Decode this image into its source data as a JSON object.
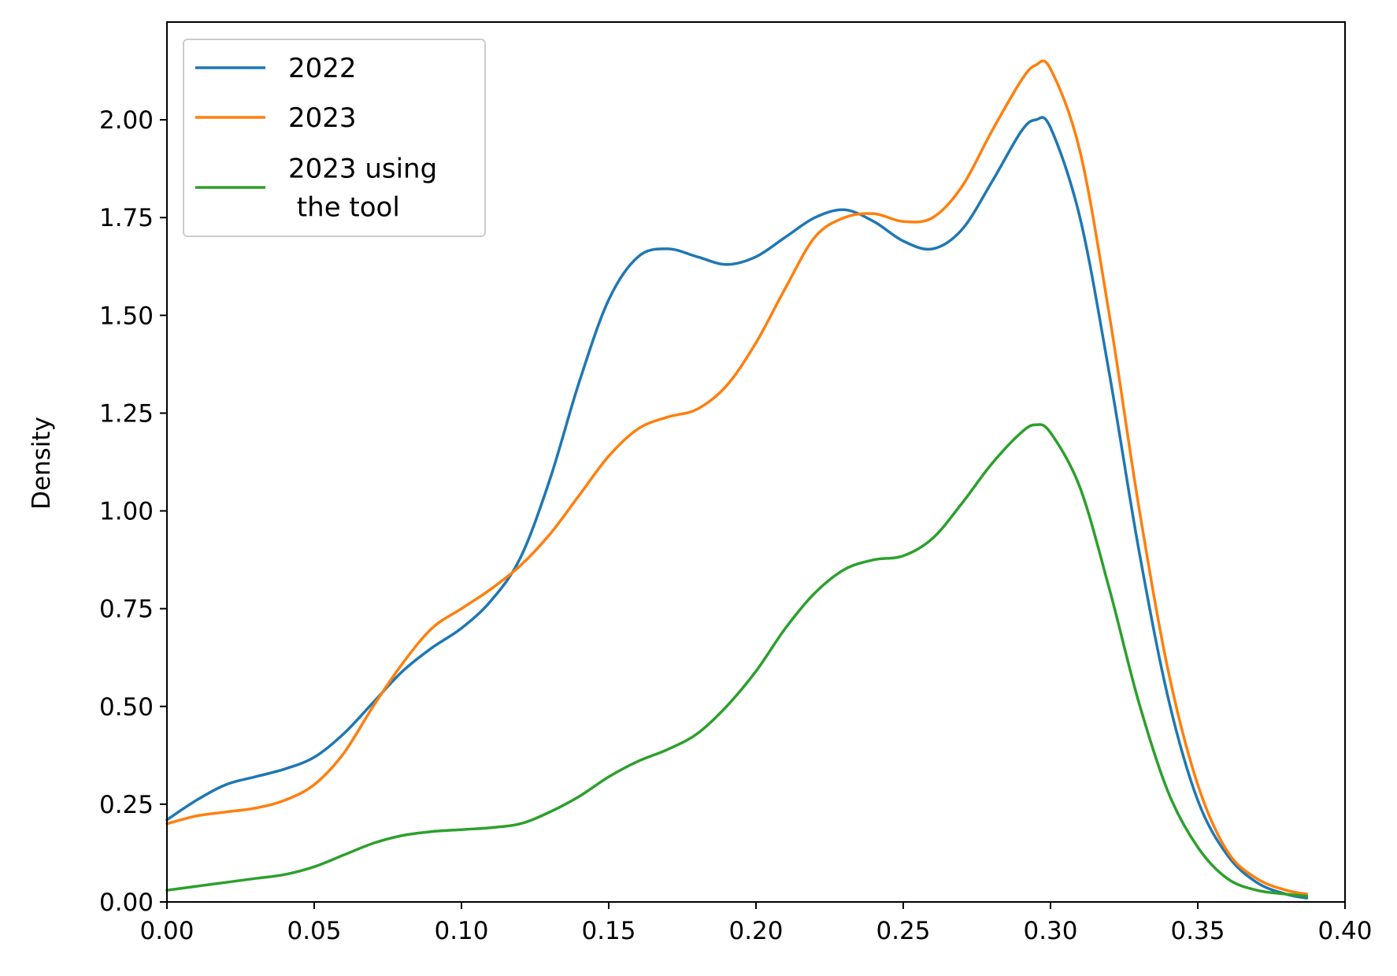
{
  "chart_data": {
    "type": "line",
    "title": "",
    "xlabel": "",
    "ylabel": "Density",
    "xlim": [
      0,
      0.4
    ],
    "ylim": [
      0,
      2.25
    ],
    "xticks": [
      "0.00",
      "0.05",
      "0.10",
      "0.15",
      "0.20",
      "0.25",
      "0.30",
      "0.35",
      "0.40"
    ],
    "yticks": [
      "0.00",
      "0.25",
      "0.50",
      "0.75",
      "1.00",
      "1.25",
      "1.50",
      "1.75",
      "2.00"
    ],
    "grid": false,
    "legend_position": "top-left",
    "series": [
      {
        "name": "2022",
        "color": "#1f77b4",
        "x": [
          0.0,
          0.01,
          0.02,
          0.03,
          0.04,
          0.05,
          0.06,
          0.07,
          0.08,
          0.09,
          0.1,
          0.11,
          0.12,
          0.13,
          0.14,
          0.15,
          0.16,
          0.17,
          0.18,
          0.19,
          0.2,
          0.21,
          0.22,
          0.23,
          0.24,
          0.25,
          0.26,
          0.27,
          0.28,
          0.29,
          0.295,
          0.3,
          0.31,
          0.32,
          0.33,
          0.34,
          0.35,
          0.36,
          0.37,
          0.38,
          0.387
        ],
        "y": [
          0.21,
          0.26,
          0.3,
          0.32,
          0.34,
          0.37,
          0.43,
          0.51,
          0.59,
          0.65,
          0.7,
          0.77,
          0.88,
          1.08,
          1.33,
          1.54,
          1.65,
          1.67,
          1.65,
          1.63,
          1.65,
          1.7,
          1.75,
          1.77,
          1.74,
          1.69,
          1.67,
          1.72,
          1.84,
          1.97,
          2.0,
          1.98,
          1.75,
          1.35,
          0.9,
          0.52,
          0.26,
          0.12,
          0.05,
          0.02,
          0.01
        ]
      },
      {
        "name": "2023",
        "color": "#ff7f0e",
        "x": [
          0.0,
          0.01,
          0.02,
          0.03,
          0.04,
          0.05,
          0.06,
          0.07,
          0.08,
          0.09,
          0.1,
          0.11,
          0.12,
          0.13,
          0.14,
          0.15,
          0.16,
          0.17,
          0.18,
          0.19,
          0.2,
          0.21,
          0.22,
          0.23,
          0.24,
          0.25,
          0.26,
          0.27,
          0.28,
          0.29,
          0.295,
          0.3,
          0.31,
          0.32,
          0.33,
          0.34,
          0.35,
          0.36,
          0.37,
          0.38,
          0.387
        ],
        "y": [
          0.2,
          0.22,
          0.23,
          0.24,
          0.26,
          0.3,
          0.38,
          0.5,
          0.61,
          0.7,
          0.75,
          0.8,
          0.86,
          0.94,
          1.04,
          1.14,
          1.21,
          1.24,
          1.26,
          1.32,
          1.43,
          1.57,
          1.7,
          1.75,
          1.76,
          1.74,
          1.75,
          1.83,
          1.97,
          2.1,
          2.14,
          2.13,
          1.92,
          1.5,
          1.01,
          0.59,
          0.3,
          0.13,
          0.06,
          0.03,
          0.02
        ]
      },
      {
        "name": "2023 using\n the tool",
        "color": "#2ca02c",
        "x": [
          0.0,
          0.01,
          0.02,
          0.03,
          0.04,
          0.05,
          0.06,
          0.07,
          0.08,
          0.09,
          0.1,
          0.11,
          0.12,
          0.13,
          0.14,
          0.15,
          0.16,
          0.17,
          0.18,
          0.19,
          0.2,
          0.21,
          0.22,
          0.23,
          0.24,
          0.25,
          0.26,
          0.27,
          0.28,
          0.29,
          0.295,
          0.3,
          0.31,
          0.32,
          0.33,
          0.34,
          0.35,
          0.36,
          0.37,
          0.38,
          0.387
        ],
        "y": [
          0.03,
          0.04,
          0.05,
          0.06,
          0.07,
          0.09,
          0.12,
          0.15,
          0.17,
          0.18,
          0.185,
          0.19,
          0.2,
          0.23,
          0.27,
          0.32,
          0.36,
          0.39,
          0.43,
          0.5,
          0.59,
          0.7,
          0.79,
          0.85,
          0.875,
          0.885,
          0.93,
          1.02,
          1.12,
          1.2,
          1.22,
          1.2,
          1.06,
          0.8,
          0.51,
          0.28,
          0.14,
          0.06,
          0.03,
          0.02,
          0.015
        ]
      }
    ]
  }
}
